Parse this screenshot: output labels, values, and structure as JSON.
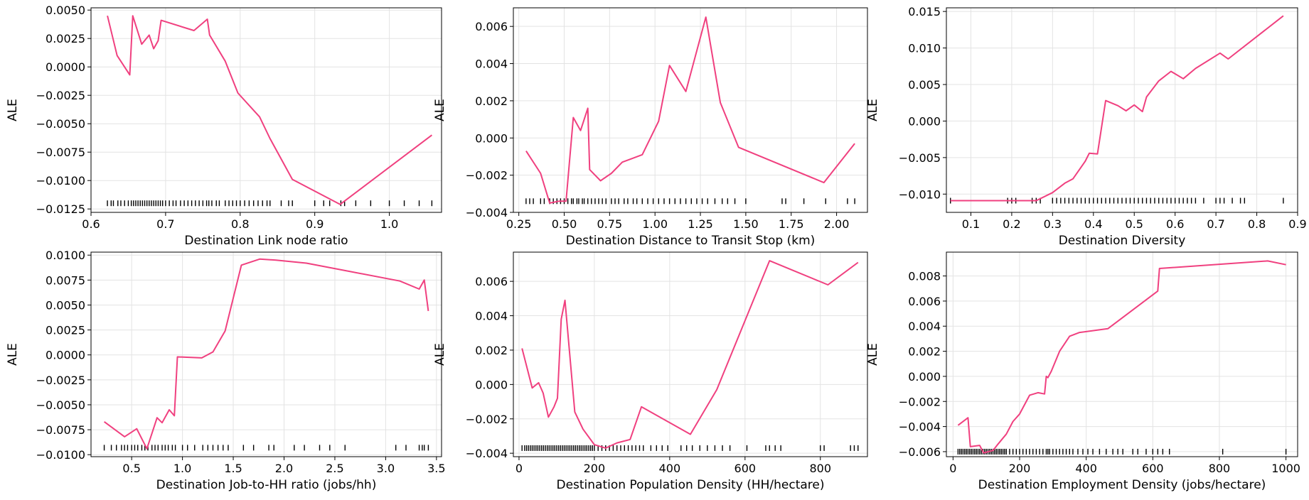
{
  "colors": {
    "line": "#f0407f",
    "rug": "#000000",
    "grid": "#e3e3e3",
    "axis": "#000000"
  },
  "chart_data": [
    {
      "type": "line",
      "xlabel": "Destination Link node ratio",
      "ylabel": "ALE",
      "xlim": [
        0.6,
        1.07
      ],
      "ylim": [
        -0.0128,
        0.0052
      ],
      "xticks": [
        0.6,
        0.7,
        0.8,
        0.9,
        1.0
      ],
      "xtick_labels": [
        "0.6",
        "0.7",
        "0.8",
        "0.9",
        "1.0"
      ],
      "yticks": [
        -0.0125,
        -0.01,
        -0.0075,
        -0.005,
        -0.0025,
        0.0,
        0.0025,
        0.005
      ],
      "ytick_labels": [
        "−0.0125",
        "−0.0100",
        "−0.0075",
        "−0.0050",
        "−0.0025",
        "0.0000",
        "0.0025",
        "0.0050"
      ],
      "grid": true,
      "x": [
        0.622,
        0.635,
        0.652,
        0.656,
        0.668,
        0.678,
        0.684,
        0.69,
        0.694,
        0.738,
        0.756,
        0.759,
        0.78,
        0.797,
        0.826,
        0.84,
        0.87,
        0.934,
        1.057
      ],
      "y": [
        0.0045,
        0.001,
        -0.0007,
        0.0045,
        0.002,
        0.0028,
        0.0016,
        0.0023,
        0.0041,
        0.0032,
        0.0042,
        0.0028,
        0.0005,
        -0.0023,
        -0.0044,
        -0.0063,
        -0.0099,
        -0.0121,
        -0.006
      ],
      "rug_y": -0.012,
      "rug": [
        0.622,
        0.627,
        0.63,
        0.636,
        0.64,
        0.645,
        0.65,
        0.654,
        0.657,
        0.66,
        0.663,
        0.666,
        0.669,
        0.672,
        0.675,
        0.678,
        0.681,
        0.684,
        0.687,
        0.69,
        0.693,
        0.696,
        0.7,
        0.705,
        0.71,
        0.714,
        0.72,
        0.725,
        0.73,
        0.735,
        0.74,
        0.745,
        0.75,
        0.755,
        0.758,
        0.762,
        0.768,
        0.772,
        0.78,
        0.785,
        0.79,
        0.795,
        0.8,
        0.806,
        0.812,
        0.818,
        0.824,
        0.83,
        0.836,
        0.84,
        0.855,
        0.865,
        0.87,
        0.9,
        0.912,
        0.92,
        0.935,
        0.94,
        0.955,
        0.975,
        1.0,
        1.02,
        1.04,
        1.057
      ]
    },
    {
      "type": "line",
      "xlabel": "Destination Distance to Transit Stop (km)",
      "ylabel": "ALE",
      "xlim": [
        0.22,
        2.17
      ],
      "ylim": [
        -0.004,
        0.007
      ],
      "xticks": [
        0.25,
        0.5,
        0.75,
        1.0,
        1.25,
        1.5,
        1.75,
        2.0
      ],
      "xtick_labels": [
        "0.25",
        "0.50",
        "0.75",
        "1.00",
        "1.25",
        "1.50",
        "1.75",
        "2.00"
      ],
      "yticks": [
        -0.004,
        -0.002,
        0.0,
        0.002,
        0.004,
        0.006
      ],
      "ytick_labels": [
        "−0.004",
        "−0.002",
        "0.000",
        "0.002",
        "0.004",
        "0.006"
      ],
      "grid": true,
      "x": [
        0.29,
        0.37,
        0.42,
        0.47,
        0.51,
        0.55,
        0.59,
        0.63,
        0.64,
        0.7,
        0.76,
        0.82,
        0.93,
        1.02,
        1.08,
        1.17,
        1.28,
        1.36,
        1.46,
        1.93,
        2.1
      ],
      "y": [
        -0.0007,
        -0.0019,
        -0.0035,
        -0.0034,
        -0.0034,
        0.0011,
        0.0004,
        0.0016,
        -0.0017,
        -0.0023,
        -0.0019,
        -0.0013,
        -0.0009,
        0.0009,
        0.0039,
        0.0025,
        0.0065,
        0.0019,
        -0.0005,
        -0.0024,
        -0.0003
      ],
      "rug_y": -0.0034,
      "rug": [
        0.29,
        0.31,
        0.33,
        0.37,
        0.39,
        0.42,
        0.44,
        0.46,
        0.48,
        0.5,
        0.52,
        0.54,
        0.55,
        0.57,
        0.58,
        0.6,
        0.61,
        0.63,
        0.65,
        0.67,
        0.69,
        0.71,
        0.73,
        0.76,
        0.78,
        0.8,
        0.83,
        0.85,
        0.88,
        0.9,
        0.93,
        0.96,
        0.99,
        1.02,
        1.05,
        1.08,
        1.11,
        1.14,
        1.17,
        1.2,
        1.23,
        1.26,
        1.29,
        1.33,
        1.37,
        1.4,
        1.44,
        1.5,
        1.7,
        1.72,
        1.82,
        1.94,
        2.06,
        2.1
      ]
    },
    {
      "type": "line",
      "xlabel": "Destination Diversity",
      "ylabel": "ALE",
      "xlim": [
        0.04,
        0.9
      ],
      "ylim": [
        -0.0125,
        0.0155
      ],
      "xticks": [
        0.1,
        0.2,
        0.3,
        0.4,
        0.5,
        0.6,
        0.7,
        0.8,
        0.9
      ],
      "xtick_labels": [
        "0.1",
        "0.2",
        "0.3",
        "0.4",
        "0.5",
        "0.6",
        "0.7",
        "0.8",
        "0.9"
      ],
      "yticks": [
        -0.01,
        -0.005,
        0.0,
        0.005,
        0.01,
        0.015
      ],
      "ytick_labels": [
        "−0.010",
        "−0.005",
        "0.000",
        "0.005",
        "0.010",
        "0.015"
      ],
      "grid": true,
      "x": [
        0.05,
        0.26,
        0.3,
        0.33,
        0.35,
        0.38,
        0.39,
        0.41,
        0.43,
        0.46,
        0.48,
        0.5,
        0.52,
        0.53,
        0.56,
        0.59,
        0.62,
        0.65,
        0.71,
        0.73,
        0.865
      ],
      "y": [
        -0.0109,
        -0.0109,
        -0.0098,
        -0.0085,
        -0.0079,
        -0.0055,
        -0.0044,
        -0.0045,
        0.0028,
        0.0021,
        0.0014,
        0.0022,
        0.0013,
        0.0033,
        0.0055,
        0.0068,
        0.0058,
        0.0072,
        0.0093,
        0.0085,
        0.0144
      ],
      "rug_y": -0.0109,
      "rug": [
        0.05,
        0.19,
        0.2,
        0.21,
        0.25,
        0.26,
        0.27,
        0.3,
        0.31,
        0.32,
        0.33,
        0.34,
        0.35,
        0.36,
        0.37,
        0.38,
        0.39,
        0.4,
        0.41,
        0.42,
        0.43,
        0.44,
        0.45,
        0.46,
        0.47,
        0.48,
        0.49,
        0.5,
        0.51,
        0.52,
        0.53,
        0.54,
        0.55,
        0.56,
        0.57,
        0.58,
        0.59,
        0.6,
        0.61,
        0.62,
        0.63,
        0.64,
        0.65,
        0.67,
        0.7,
        0.71,
        0.72,
        0.74,
        0.76,
        0.77,
        0.865
      ]
    },
    {
      "type": "line",
      "xlabel": "Destination Job-to-HH ratio (jobs/hh)",
      "ylabel": "ALE",
      "xlim": [
        0.1,
        3.55
      ],
      "ylim": [
        -0.0102,
        0.0103
      ],
      "xticks": [
        0.5,
        1.0,
        1.5,
        2.0,
        2.5,
        3.0,
        3.5
      ],
      "xtick_labels": [
        "0.5",
        "1.0",
        "1.5",
        "2.0",
        "2.5",
        "3.0",
        "3.5"
      ],
      "yticks": [
        -0.01,
        -0.0075,
        -0.005,
        -0.0025,
        0.0,
        0.0025,
        0.005,
        0.0075,
        0.01
      ],
      "ytick_labels": [
        "−0.0100",
        "−0.0075",
        "−0.0050",
        "−0.0025",
        "0.0000",
        "0.0025",
        "0.0050",
        "0.0075",
        "0.0100"
      ],
      "grid": true,
      "x": [
        0.23,
        0.43,
        0.55,
        0.65,
        0.75,
        0.8,
        0.87,
        0.92,
        0.95,
        1.19,
        1.3,
        1.42,
        1.58,
        1.76,
        1.92,
        2.22,
        3.14,
        3.33,
        3.38,
        3.42
      ],
      "y": [
        -0.0067,
        -0.0082,
        -0.0074,
        -0.0094,
        -0.0063,
        -0.0068,
        -0.0055,
        -0.0061,
        -0.0002,
        -0.0003,
        0.0003,
        0.0024,
        0.009,
        0.0096,
        0.0095,
        0.0092,
        0.0074,
        0.0066,
        0.0075,
        0.0044
      ],
      "rug_y": -0.0093,
      "rug": [
        0.23,
        0.3,
        0.35,
        0.4,
        0.43,
        0.46,
        0.5,
        0.53,
        0.56,
        0.6,
        0.63,
        0.66,
        0.7,
        0.73,
        0.76,
        0.8,
        0.83,
        0.86,
        0.9,
        0.93,
        1.0,
        1.05,
        1.12,
        1.2,
        1.25,
        1.3,
        1.35,
        1.4,
        1.45,
        1.6,
        1.7,
        1.85,
        1.9,
        2.1,
        2.2,
        2.35,
        2.45,
        2.6,
        3.1,
        3.2,
        3.33,
        3.36,
        3.38,
        3.42
      ]
    },
    {
      "type": "line",
      "xlabel": "Destination Population Density (HH/hectare)",
      "ylabel": "ALE",
      "xlim": [
        -15,
        925
      ],
      "ylim": [
        -0.0042,
        0.0077
      ],
      "xticks": [
        0,
        200,
        400,
        600,
        800
      ],
      "xtick_labels": [
        "0",
        "200",
        "400",
        "600",
        "800"
      ],
      "yticks": [
        -0.004,
        -0.002,
        0.0,
        0.002,
        0.004,
        0.006
      ],
      "ytick_labels": [
        "−0.004",
        "−0.002",
        "0.000",
        "0.002",
        "0.004",
        "0.006"
      ],
      "grid": true,
      "x": [
        8,
        35,
        52,
        64,
        78,
        93,
        102,
        112,
        122,
        148,
        170,
        200,
        230,
        260,
        295,
        325,
        455,
        525,
        665,
        820,
        900
      ],
      "y": [
        0.0021,
        -0.0002,
        0.0001,
        -0.0005,
        -0.0019,
        -0.0013,
        -0.0008,
        0.0038,
        0.0049,
        -0.0016,
        -0.0026,
        -0.0035,
        -0.0037,
        -0.0034,
        -0.0032,
        -0.0013,
        -0.0029,
        -0.0003,
        0.0072,
        0.0058,
        0.0071
      ],
      "rug_y": -0.0037,
      "rug": [
        8,
        15,
        20,
        25,
        30,
        35,
        40,
        45,
        50,
        55,
        60,
        65,
        70,
        75,
        80,
        85,
        90,
        95,
        100,
        105,
        110,
        115,
        120,
        125,
        130,
        135,
        140,
        145,
        150,
        155,
        160,
        165,
        170,
        175,
        180,
        185,
        190,
        195,
        200,
        210,
        220,
        230,
        240,
        250,
        260,
        270,
        280,
        290,
        300,
        310,
        320,
        330,
        350,
        365,
        380,
        395,
        430,
        445,
        460,
        480,
        500,
        520,
        540,
        560,
        605,
        655,
        665,
        680,
        695,
        800,
        810,
        880,
        890,
        900
      ]
    },
    {
      "type": "line",
      "xlabel": "Destination Employment Density (jobs/hectare)",
      "ylabel": "ALE",
      "xlim": [
        -20,
        1035
      ],
      "ylim": [
        -0.0064,
        0.0099
      ],
      "xticks": [
        0,
        200,
        400,
        600,
        800,
        1000
      ],
      "xtick_labels": [
        "0",
        "200",
        "400",
        "600",
        "800",
        "1000"
      ],
      "yticks": [
        -0.006,
        -0.004,
        -0.002,
        0.0,
        0.002,
        0.004,
        0.006,
        0.008
      ],
      "ytick_labels": [
        "−0.006",
        "−0.004",
        "−0.002",
        "0.000",
        "0.002",
        "0.004",
        "0.006",
        "0.008"
      ],
      "grid": true,
      "x": [
        15,
        45,
        52,
        80,
        92,
        120,
        135,
        160,
        180,
        200,
        230,
        255,
        275,
        280,
        285,
        295,
        320,
        350,
        380,
        465,
        615,
        620,
        945,
        1000
      ],
      "y": [
        -0.0039,
        -0.0033,
        -0.0056,
        -0.0055,
        -0.0061,
        -0.0059,
        -0.0054,
        -0.0046,
        -0.0036,
        -0.003,
        -0.0015,
        -0.0013,
        -0.0014,
        0.0,
        -0.0001,
        0.0004,
        0.002,
        0.0032,
        0.0035,
        0.0038,
        0.0068,
        0.0086,
        0.0092,
        0.0089
      ],
      "rug_y": -0.006,
      "rug": [
        15,
        20,
        25,
        30,
        35,
        40,
        45,
        50,
        55,
        60,
        65,
        70,
        75,
        80,
        85,
        90,
        95,
        100,
        105,
        110,
        115,
        120,
        125,
        130,
        135,
        140,
        145,
        150,
        155,
        160,
        170,
        180,
        190,
        200,
        210,
        220,
        230,
        240,
        250,
        260,
        270,
        280,
        285,
        290,
        300,
        310,
        320,
        330,
        340,
        350,
        360,
        375,
        390,
        405,
        420,
        440,
        460,
        480,
        495,
        510,
        540,
        555,
        580,
        600,
        615,
        630,
        650,
        810,
        1000
      ]
    }
  ]
}
